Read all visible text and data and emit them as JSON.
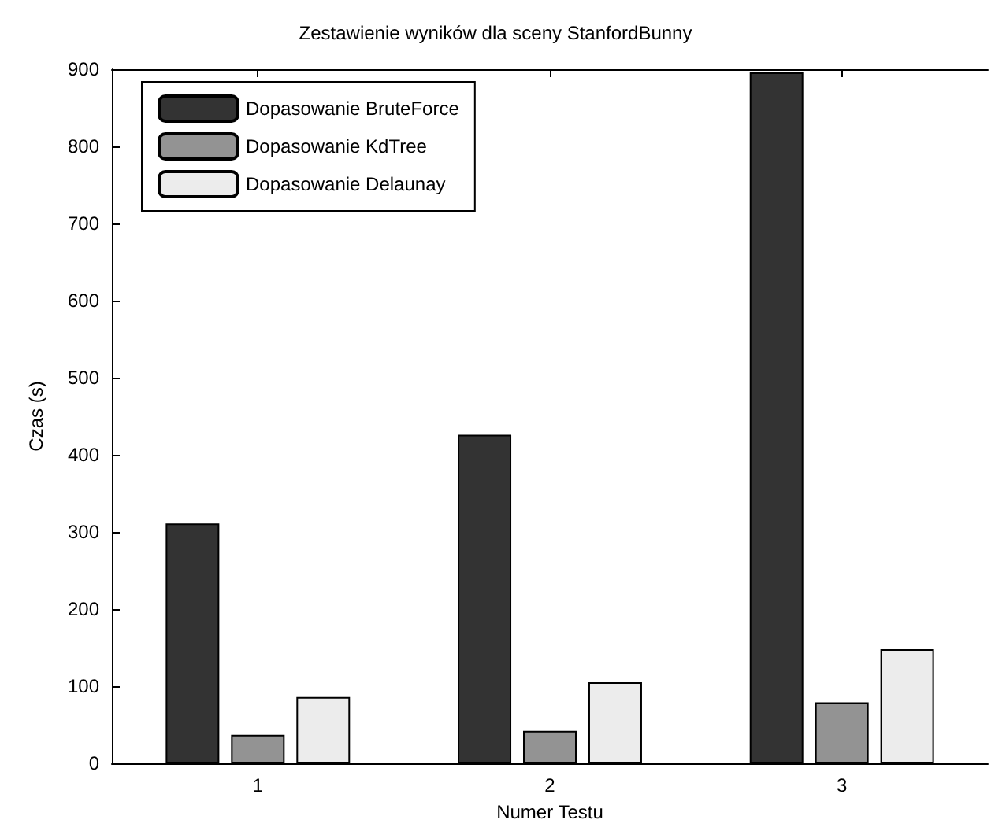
{
  "chart_data": {
    "type": "bar",
    "title": "Zestawienie wyników dla sceny StanfordBunny",
    "xlabel": "Numer Testu",
    "ylabel": "Czas (s)",
    "categories": [
      "1",
      "2",
      "3"
    ],
    "series": [
      {
        "name": "Dopasowanie BruteForce",
        "color": "#333333",
        "values": [
          311,
          426,
          896
        ]
      },
      {
        "name": "Dopasowanie KdTree",
        "color": "#939393",
        "values": [
          37,
          42,
          79
        ]
      },
      {
        "name": "Dopasowanie Delaunay",
        "color": "#ececec",
        "values": [
          86,
          105,
          148
        ]
      }
    ],
    "ylim": [
      0,
      900
    ],
    "yticks": [
      0,
      100,
      200,
      300,
      400,
      500,
      600,
      700,
      800,
      900
    ],
    "grid": false,
    "legend": "top left"
  }
}
